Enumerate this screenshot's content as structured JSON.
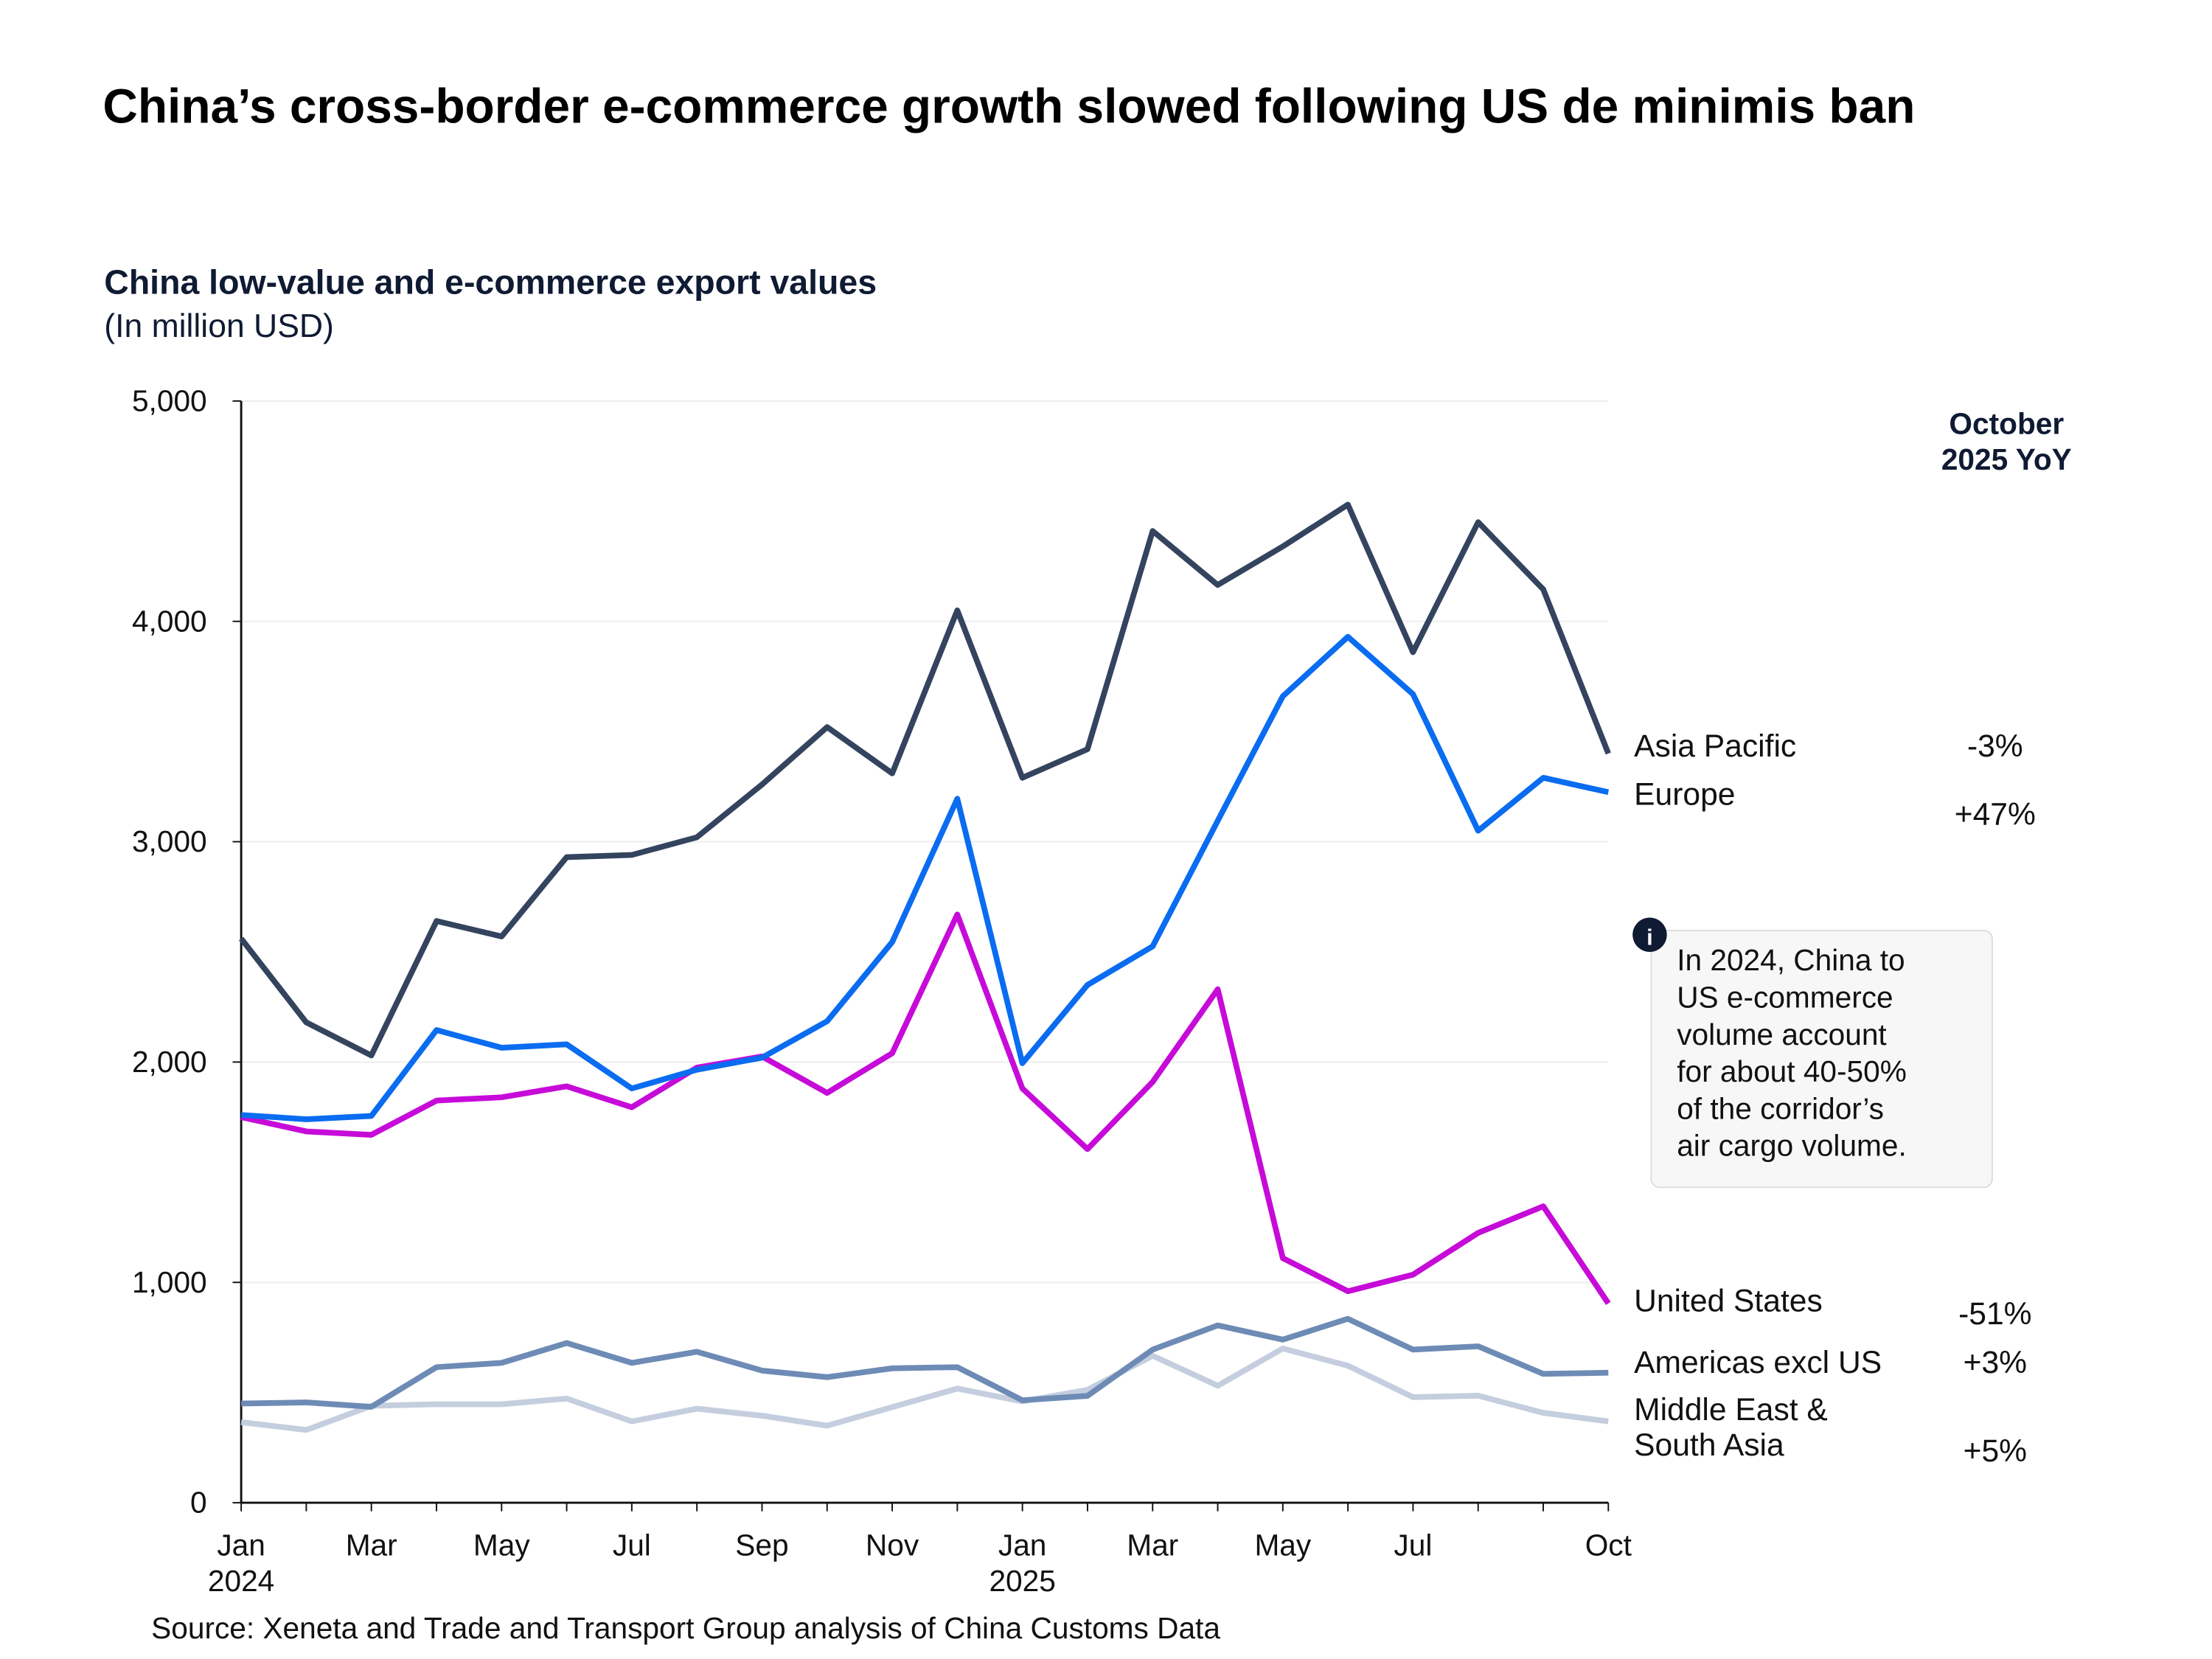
{
  "title": "China’s cross-border e-commerce growth slowed following US de minimis ban",
  "source": "Source: Xeneta and Trade and Transport Group analysis of China Customs Data",
  "note": {
    "icon": "info-icon",
    "lines": [
      "In 2024, China to",
      "US e-commerce",
      "volume account",
      "for about 40-50%",
      "of the corridor’s",
      "air cargo volume."
    ]
  },
  "chart_data": {
    "type": "line",
    "title": "China low-value and e-commerce export values",
    "subtitle": "(In million USD)",
    "yoy_header": [
      "October",
      "2025 YoY"
    ],
    "x": [
      "2024-01",
      "2024-02",
      "2024-03",
      "2024-04",
      "2024-05",
      "2024-06",
      "2024-07",
      "2024-08",
      "2024-09",
      "2024-10",
      "2024-11",
      "2024-12",
      "2025-01",
      "2025-02",
      "2025-03",
      "2025-04",
      "2025-05",
      "2025-06",
      "2025-07",
      "2025-08",
      "2025-09",
      "2025-10"
    ],
    "x_ticks": [
      {
        "index": 0,
        "label": "Jan",
        "year": "2024"
      },
      {
        "index": 2,
        "label": "Mar"
      },
      {
        "index": 4,
        "label": "May"
      },
      {
        "index": 6,
        "label": "Jul"
      },
      {
        "index": 8,
        "label": "Sep"
      },
      {
        "index": 10,
        "label": "Nov"
      },
      {
        "index": 12,
        "label": "Jan",
        "year": "2025"
      },
      {
        "index": 14,
        "label": "Mar"
      },
      {
        "index": 16,
        "label": "May"
      },
      {
        "index": 18,
        "label": "Jul"
      },
      {
        "index": 21,
        "label": "Oct"
      }
    ],
    "ylim": [
      0,
      5000
    ],
    "y_ticks": [
      "0",
      "1,000",
      "2,000",
      "3,000",
      "4,000",
      "5,000"
    ],
    "y_tick_values": [
      0,
      1000,
      2000,
      3000,
      4000,
      5000
    ],
    "grid": true,
    "series": [
      {
        "name": "Asia Pacific",
        "yoy": "-3%",
        "color": "#34445f",
        "values": [
          2560,
          2180,
          2030,
          2640,
          2570,
          2930,
          2940,
          3020,
          3260,
          3520,
          3310,
          4050,
          3290,
          3420,
          4410,
          4165,
          4340,
          4530,
          3860,
          4450,
          4145,
          3400
        ]
      },
      {
        "name": "Europe",
        "yoy": "+47%",
        "color": "#0a6cf0",
        "values": [
          1760,
          1740,
          1755,
          2145,
          2065,
          2080,
          1880,
          1965,
          2020,
          2185,
          2545,
          3195,
          1995,
          2350,
          2525,
          3095,
          3660,
          3930,
          3670,
          3050,
          3290,
          3225
        ]
      },
      {
        "name": "United States",
        "yoy": "-51%",
        "color": "#c60bd9",
        "values": [
          1750,
          1685,
          1670,
          1825,
          1840,
          1890,
          1795,
          1975,
          2025,
          1860,
          2040,
          2670,
          1880,
          1605,
          1910,
          2330,
          1110,
          960,
          1035,
          1225,
          1345,
          905
        ]
      },
      {
        "name": "Americas excl US",
        "yoy": "+3%",
        "color": "#6d8bb5",
        "values": [
          450,
          455,
          435,
          615,
          635,
          725,
          635,
          685,
          600,
          570,
          610,
          615,
          465,
          485,
          695,
          805,
          740,
          835,
          695,
          710,
          585,
          590
        ]
      },
      {
        "name": "Middle East & South Asia",
        "label_lines": [
          "Middle East &",
          " South Asia"
        ],
        "yoy": "+5%",
        "color": "#c4cede",
        "values": [
          365,
          330,
          440,
          447,
          447,
          473,
          369,
          427,
          395,
          350,
          434,
          518,
          460,
          512,
          667,
          531,
          700,
          622,
          479,
          486,
          408,
          369
        ]
      }
    ]
  }
}
